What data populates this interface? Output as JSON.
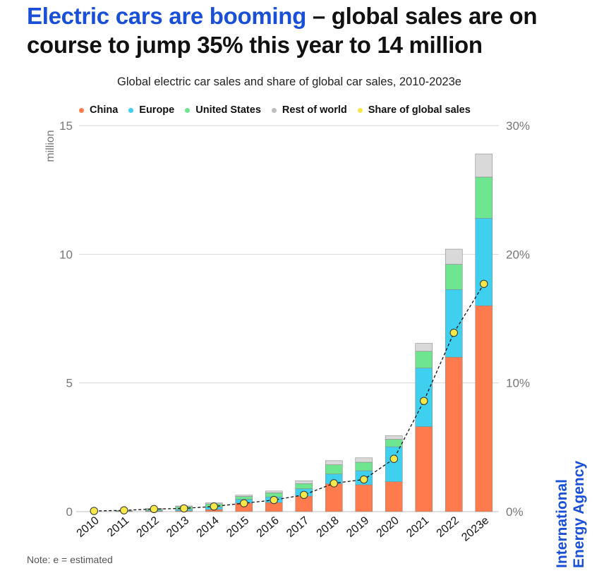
{
  "headline": {
    "highlight": "Electric cars are booming",
    "rest": " – global sales are on course to jump 35% this year to 14 million"
  },
  "chart_data": {
    "type": "bar",
    "stacked": true,
    "title": "Global electric car sales and share of global car sales, 2010-2023e",
    "ylabel": "million",
    "ylim": [
      0,
      15
    ],
    "yticks": [
      "0",
      "5",
      "10",
      "15"
    ],
    "y2lim": [
      0,
      30
    ],
    "y2ticks": [
      "0%",
      "10%",
      "20%",
      "30%"
    ],
    "categories": [
      "2010",
      "2011",
      "2012",
      "2013",
      "2014",
      "2015",
      "2016",
      "2017",
      "2018",
      "2019",
      "2020",
      "2021",
      "2022",
      "2023e"
    ],
    "series": [
      {
        "name": "China",
        "color": "#ff7a4d",
        "axis": "left",
        "values": [
          0.0,
          0.01,
          0.02,
          0.03,
          0.08,
          0.33,
          0.35,
          0.6,
          1.08,
          1.04,
          1.16,
          3.3,
          6.0,
          8.0
        ]
      },
      {
        "name": "Europe",
        "color": "#3fd0f0",
        "axis": "left",
        "values": [
          0.0,
          0.01,
          0.03,
          0.06,
          0.1,
          0.15,
          0.22,
          0.29,
          0.38,
          0.55,
          1.36,
          2.28,
          2.63,
          3.4
        ]
      },
      {
        "name": "United States",
        "color": "#6ee68f",
        "axis": "left",
        "values": [
          0.0,
          0.02,
          0.05,
          0.1,
          0.12,
          0.11,
          0.16,
          0.2,
          0.36,
          0.33,
          0.29,
          0.65,
          0.98,
          1.6
        ]
      },
      {
        "name": "Rest of world",
        "color": "#d9d9d9",
        "axis": "left",
        "values": [
          0.0,
          0.0,
          0.02,
          0.03,
          0.04,
          0.05,
          0.07,
          0.11,
          0.16,
          0.17,
          0.14,
          0.31,
          0.59,
          0.9
        ]
      },
      {
        "name": "Share of global sales",
        "color": "#f7e84a",
        "type": "line",
        "axis": "right",
        "unit": "%",
        "values": [
          0.05,
          0.1,
          0.2,
          0.25,
          0.4,
          0.65,
          0.9,
          1.3,
          2.2,
          2.5,
          4.1,
          8.6,
          13.9,
          17.7
        ]
      }
    ],
    "grid": true,
    "legend_position": "top"
  },
  "note": "Note: e = estimated",
  "brand": {
    "line1": "International",
    "line2": "Energy Agency"
  }
}
